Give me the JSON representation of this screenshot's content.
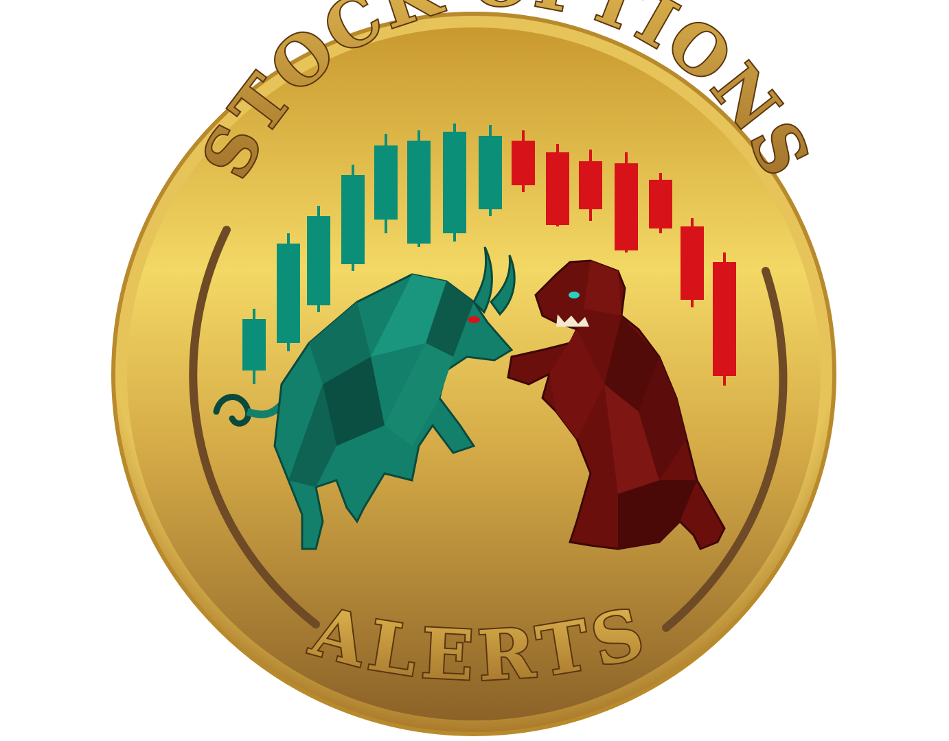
{
  "logo": {
    "top_text": "STOCK OPTIONS",
    "bottom_text": "ALERTS",
    "colors": {
      "gold_light": "#f6dc6a",
      "gold_mid": "#d8b043",
      "gold_dark": "#8e6327",
      "rim_edge": "#b88a2c",
      "inner_ring": "#6e4a26",
      "bull_candle": "#0b8f78",
      "bear_candle": "#d81219",
      "bull_body": "#13806c",
      "bull_shadow": "#0a4a3d",
      "bear_body": "#6b0f0d",
      "bear_shadow": "#3f0706",
      "text_fill": "#b7852b",
      "text_outline": "#5a3610"
    },
    "candles": [
      {
        "trend": "up"
      },
      {
        "trend": "up"
      },
      {
        "trend": "up"
      },
      {
        "trend": "up"
      },
      {
        "trend": "up"
      },
      {
        "trend": "up"
      },
      {
        "trend": "up"
      },
      {
        "trend": "up"
      },
      {
        "trend": "down"
      },
      {
        "trend": "down"
      },
      {
        "trend": "down"
      },
      {
        "trend": "down"
      },
      {
        "trend": "down"
      },
      {
        "trend": "down"
      },
      {
        "trend": "down"
      }
    ],
    "figures": [
      "bull",
      "bear"
    ]
  }
}
